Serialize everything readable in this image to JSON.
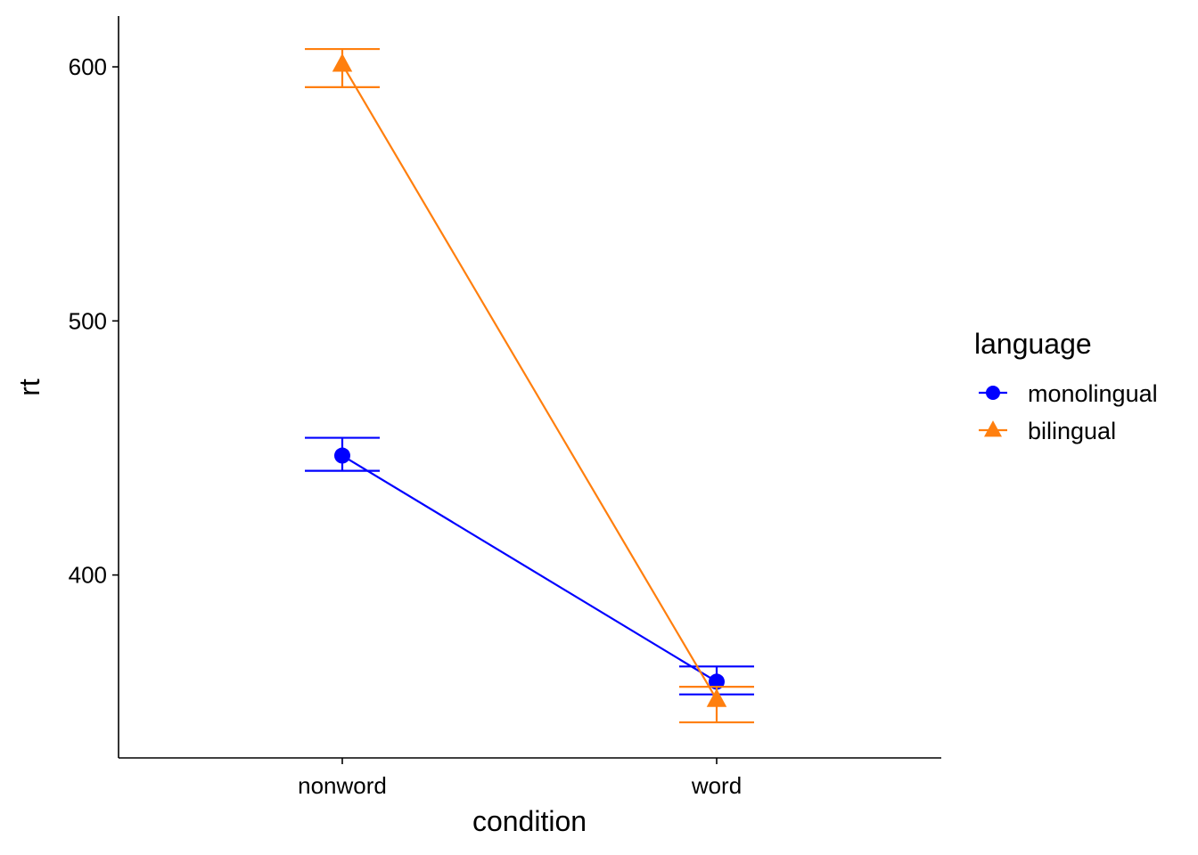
{
  "chart_data": {
    "type": "line",
    "title": "",
    "xlabel": "condition",
    "ylabel": "rt",
    "categories": [
      "nonword",
      "word"
    ],
    "ylim": [
      328,
      620
    ],
    "yticks": [
      400,
      500,
      600
    ],
    "ytick_labels": [
      "400",
      "500",
      "600"
    ],
    "grid": false,
    "legend": {
      "title": "language",
      "position": "right"
    },
    "series": [
      {
        "name": "monolingual",
        "color": "#0000ff",
        "marker": "circle",
        "values": [
          447,
          358
        ],
        "error_low": [
          441,
          353
        ],
        "error_high": [
          454,
          364
        ]
      },
      {
        "name": "bilingual",
        "color": "#ff7f0e",
        "marker": "triangle",
        "values": [
          601,
          351
        ],
        "error_low": [
          592,
          342
        ],
        "error_high": [
          607,
          356
        ]
      }
    ]
  }
}
